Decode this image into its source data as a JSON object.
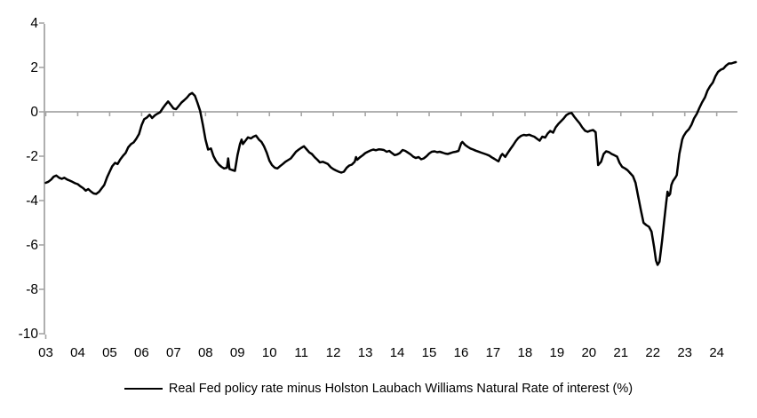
{
  "chart_data": {
    "type": "line",
    "title": "",
    "xlabel": "",
    "ylabel": "",
    "grid": false,
    "zero_line": true,
    "legend_position": "bottom-center",
    "x_axis": {
      "tick_years": [
        2003,
        2004,
        2005,
        2006,
        2007,
        2008,
        2009,
        2010,
        2011,
        2012,
        2013,
        2014,
        2015,
        2016,
        2017,
        2018,
        2019,
        2020,
        2021,
        2022,
        2023,
        2024
      ],
      "tick_labels": [
        "03",
        "04",
        "05",
        "06",
        "07",
        "08",
        "09",
        "10",
        "11",
        "12",
        "13",
        "14",
        "15",
        "16",
        "17",
        "18",
        "19",
        "20",
        "21",
        "22",
        "23",
        "24"
      ],
      "range_years": [
        2002.9,
        2024.72
      ]
    },
    "y_axis": {
      "ticks": [
        4,
        2,
        0,
        -2,
        -4,
        -6,
        -8,
        -10
      ],
      "tick_labels": [
        "4",
        "2",
        "0",
        "-2",
        "-4",
        "-6",
        "-8",
        "-10"
      ],
      "ylim": [
        -10,
        4
      ]
    },
    "series": [
      {
        "name": "Real Fed policy rate minus Holston Laubach Williams Natural Rate of interest (%)",
        "color": "#000000",
        "points": [
          [
            2003.0,
            -3.2
          ],
          [
            2003.08,
            -3.15
          ],
          [
            2003.17,
            -3.05
          ],
          [
            2003.25,
            -2.92
          ],
          [
            2003.33,
            -2.87
          ],
          [
            2003.42,
            -2.97
          ],
          [
            2003.5,
            -3.02
          ],
          [
            2003.58,
            -2.97
          ],
          [
            2003.67,
            -3.05
          ],
          [
            2003.75,
            -3.1
          ],
          [
            2003.83,
            -3.15
          ],
          [
            2003.92,
            -3.22
          ],
          [
            2004.0,
            -3.26
          ],
          [
            2004.08,
            -3.35
          ],
          [
            2004.17,
            -3.44
          ],
          [
            2004.25,
            -3.55
          ],
          [
            2004.33,
            -3.48
          ],
          [
            2004.42,
            -3.6
          ],
          [
            2004.5,
            -3.68
          ],
          [
            2004.58,
            -3.7
          ],
          [
            2004.67,
            -3.6
          ],
          [
            2004.75,
            -3.45
          ],
          [
            2004.83,
            -3.3
          ],
          [
            2004.92,
            -2.95
          ],
          [
            2005.0,
            -2.7
          ],
          [
            2005.08,
            -2.45
          ],
          [
            2005.17,
            -2.3
          ],
          [
            2005.25,
            -2.35
          ],
          [
            2005.33,
            -2.15
          ],
          [
            2005.42,
            -1.98
          ],
          [
            2005.5,
            -1.85
          ],
          [
            2005.58,
            -1.6
          ],
          [
            2005.67,
            -1.45
          ],
          [
            2005.75,
            -1.38
          ],
          [
            2005.83,
            -1.22
          ],
          [
            2005.92,
            -1.0
          ],
          [
            2006.0,
            -0.6
          ],
          [
            2006.08,
            -0.33
          ],
          [
            2006.17,
            -0.25
          ],
          [
            2006.25,
            -0.13
          ],
          [
            2006.33,
            -0.28
          ],
          [
            2006.42,
            -0.15
          ],
          [
            2006.5,
            -0.08
          ],
          [
            2006.58,
            -0.02
          ],
          [
            2006.67,
            0.18
          ],
          [
            2006.75,
            0.33
          ],
          [
            2006.83,
            0.47
          ],
          [
            2006.92,
            0.3
          ],
          [
            2007.0,
            0.15
          ],
          [
            2007.08,
            0.12
          ],
          [
            2007.17,
            0.28
          ],
          [
            2007.25,
            0.42
          ],
          [
            2007.33,
            0.52
          ],
          [
            2007.42,
            0.64
          ],
          [
            2007.5,
            0.78
          ],
          [
            2007.58,
            0.85
          ],
          [
            2007.67,
            0.72
          ],
          [
            2007.75,
            0.4
          ],
          [
            2007.83,
            0.05
          ],
          [
            2007.92,
            -0.6
          ],
          [
            2008.0,
            -1.25
          ],
          [
            2008.08,
            -1.7
          ],
          [
            2008.17,
            -1.65
          ],
          [
            2008.25,
            -2.0
          ],
          [
            2008.33,
            -2.22
          ],
          [
            2008.42,
            -2.38
          ],
          [
            2008.5,
            -2.48
          ],
          [
            2008.58,
            -2.55
          ],
          [
            2008.67,
            -2.52
          ],
          [
            2008.71,
            -2.1
          ],
          [
            2008.75,
            -2.58
          ],
          [
            2008.83,
            -2.62
          ],
          [
            2008.92,
            -2.66
          ],
          [
            2009.0,
            -1.95
          ],
          [
            2009.04,
            -1.7
          ],
          [
            2009.08,
            -1.45
          ],
          [
            2009.13,
            -1.25
          ],
          [
            2009.17,
            -1.45
          ],
          [
            2009.25,
            -1.3
          ],
          [
            2009.33,
            -1.15
          ],
          [
            2009.42,
            -1.2
          ],
          [
            2009.5,
            -1.12
          ],
          [
            2009.58,
            -1.07
          ],
          [
            2009.67,
            -1.25
          ],
          [
            2009.75,
            -1.35
          ],
          [
            2009.83,
            -1.55
          ],
          [
            2009.92,
            -1.85
          ],
          [
            2010.0,
            -2.2
          ],
          [
            2010.08,
            -2.4
          ],
          [
            2010.17,
            -2.52
          ],
          [
            2010.25,
            -2.55
          ],
          [
            2010.33,
            -2.45
          ],
          [
            2010.42,
            -2.35
          ],
          [
            2010.5,
            -2.25
          ],
          [
            2010.58,
            -2.18
          ],
          [
            2010.67,
            -2.1
          ],
          [
            2010.75,
            -1.95
          ],
          [
            2010.83,
            -1.8
          ],
          [
            2010.92,
            -1.7
          ],
          [
            2011.0,
            -1.62
          ],
          [
            2011.08,
            -1.55
          ],
          [
            2011.17,
            -1.7
          ],
          [
            2011.25,
            -1.83
          ],
          [
            2011.33,
            -1.9
          ],
          [
            2011.42,
            -2.05
          ],
          [
            2011.5,
            -2.16
          ],
          [
            2011.58,
            -2.28
          ],
          [
            2011.67,
            -2.25
          ],
          [
            2011.75,
            -2.3
          ],
          [
            2011.83,
            -2.35
          ],
          [
            2011.92,
            -2.5
          ],
          [
            2012.0,
            -2.58
          ],
          [
            2012.08,
            -2.64
          ],
          [
            2012.17,
            -2.7
          ],
          [
            2012.25,
            -2.74
          ],
          [
            2012.33,
            -2.7
          ],
          [
            2012.42,
            -2.52
          ],
          [
            2012.5,
            -2.42
          ],
          [
            2012.58,
            -2.38
          ],
          [
            2012.67,
            -2.25
          ],
          [
            2012.71,
            -2.04
          ],
          [
            2012.75,
            -2.16
          ],
          [
            2012.83,
            -2.05
          ],
          [
            2012.92,
            -1.96
          ],
          [
            2013.0,
            -1.86
          ],
          [
            2013.08,
            -1.8
          ],
          [
            2013.17,
            -1.74
          ],
          [
            2013.25,
            -1.7
          ],
          [
            2013.33,
            -1.73
          ],
          [
            2013.42,
            -1.69
          ],
          [
            2013.5,
            -1.7
          ],
          [
            2013.58,
            -1.72
          ],
          [
            2013.67,
            -1.8
          ],
          [
            2013.75,
            -1.76
          ],
          [
            2013.83,
            -1.85
          ],
          [
            2013.92,
            -1.95
          ],
          [
            2014.0,
            -1.92
          ],
          [
            2014.08,
            -1.86
          ],
          [
            2014.17,
            -1.72
          ],
          [
            2014.25,
            -1.76
          ],
          [
            2014.33,
            -1.83
          ],
          [
            2014.42,
            -1.92
          ],
          [
            2014.5,
            -2.02
          ],
          [
            2014.58,
            -2.08
          ],
          [
            2014.67,
            -2.04
          ],
          [
            2014.75,
            -2.14
          ],
          [
            2014.83,
            -2.1
          ],
          [
            2014.92,
            -2.0
          ],
          [
            2015.0,
            -1.88
          ],
          [
            2015.08,
            -1.8
          ],
          [
            2015.17,
            -1.78
          ],
          [
            2015.25,
            -1.82
          ],
          [
            2015.33,
            -1.8
          ],
          [
            2015.42,
            -1.84
          ],
          [
            2015.5,
            -1.88
          ],
          [
            2015.58,
            -1.9
          ],
          [
            2015.67,
            -1.86
          ],
          [
            2015.75,
            -1.82
          ],
          [
            2015.83,
            -1.8
          ],
          [
            2015.92,
            -1.76
          ],
          [
            2016.0,
            -1.42
          ],
          [
            2016.04,
            -1.36
          ],
          [
            2016.13,
            -1.5
          ],
          [
            2016.21,
            -1.58
          ],
          [
            2016.29,
            -1.65
          ],
          [
            2016.38,
            -1.7
          ],
          [
            2016.46,
            -1.75
          ],
          [
            2016.54,
            -1.79
          ],
          [
            2016.63,
            -1.84
          ],
          [
            2016.71,
            -1.88
          ],
          [
            2016.79,
            -1.92
          ],
          [
            2016.88,
            -1.97
          ],
          [
            2016.96,
            -2.05
          ],
          [
            2017.04,
            -2.12
          ],
          [
            2017.13,
            -2.2
          ],
          [
            2017.17,
            -2.23
          ],
          [
            2017.25,
            -1.97
          ],
          [
            2017.29,
            -1.9
          ],
          [
            2017.38,
            -2.03
          ],
          [
            2017.46,
            -1.85
          ],
          [
            2017.54,
            -1.68
          ],
          [
            2017.63,
            -1.5
          ],
          [
            2017.71,
            -1.32
          ],
          [
            2017.79,
            -1.18
          ],
          [
            2017.88,
            -1.08
          ],
          [
            2017.96,
            -1.04
          ],
          [
            2018.04,
            -1.06
          ],
          [
            2018.13,
            -1.03
          ],
          [
            2018.21,
            -1.08
          ],
          [
            2018.29,
            -1.12
          ],
          [
            2018.38,
            -1.22
          ],
          [
            2018.46,
            -1.3
          ],
          [
            2018.54,
            -1.12
          ],
          [
            2018.63,
            -1.16
          ],
          [
            2018.71,
            -0.98
          ],
          [
            2018.79,
            -0.86
          ],
          [
            2018.88,
            -0.94
          ],
          [
            2018.96,
            -0.7
          ],
          [
            2019.04,
            -0.55
          ],
          [
            2019.13,
            -0.42
          ],
          [
            2019.21,
            -0.3
          ],
          [
            2019.29,
            -0.15
          ],
          [
            2019.38,
            -0.07
          ],
          [
            2019.46,
            -0.05
          ],
          [
            2019.54,
            -0.22
          ],
          [
            2019.63,
            -0.38
          ],
          [
            2019.71,
            -0.52
          ],
          [
            2019.79,
            -0.7
          ],
          [
            2019.88,
            -0.85
          ],
          [
            2019.96,
            -0.9
          ],
          [
            2020.04,
            -0.85
          ],
          [
            2020.13,
            -0.82
          ],
          [
            2020.21,
            -0.92
          ],
          [
            2020.29,
            -2.4
          ],
          [
            2020.38,
            -2.25
          ],
          [
            2020.46,
            -1.9
          ],
          [
            2020.54,
            -1.78
          ],
          [
            2020.63,
            -1.82
          ],
          [
            2020.71,
            -1.9
          ],
          [
            2020.79,
            -1.95
          ],
          [
            2020.88,
            -2.02
          ],
          [
            2020.96,
            -2.3
          ],
          [
            2021.04,
            -2.48
          ],
          [
            2021.13,
            -2.55
          ],
          [
            2021.21,
            -2.63
          ],
          [
            2021.29,
            -2.76
          ],
          [
            2021.38,
            -2.9
          ],
          [
            2021.46,
            -3.2
          ],
          [
            2021.54,
            -3.8
          ],
          [
            2021.63,
            -4.45
          ],
          [
            2021.71,
            -5.0
          ],
          [
            2021.79,
            -5.1
          ],
          [
            2021.88,
            -5.18
          ],
          [
            2021.96,
            -5.4
          ],
          [
            2022.04,
            -6.1
          ],
          [
            2022.1,
            -6.7
          ],
          [
            2022.15,
            -6.9
          ],
          [
            2022.21,
            -6.75
          ],
          [
            2022.29,
            -5.8
          ],
          [
            2022.35,
            -5.0
          ],
          [
            2022.42,
            -4.1
          ],
          [
            2022.46,
            -3.6
          ],
          [
            2022.5,
            -3.78
          ],
          [
            2022.54,
            -3.7
          ],
          [
            2022.58,
            -3.3
          ],
          [
            2022.63,
            -3.12
          ],
          [
            2022.71,
            -2.95
          ],
          [
            2022.75,
            -2.85
          ],
          [
            2022.79,
            -2.4
          ],
          [
            2022.83,
            -1.9
          ],
          [
            2022.88,
            -1.55
          ],
          [
            2022.92,
            -1.25
          ],
          [
            2022.96,
            -1.1
          ],
          [
            2023.04,
            -0.92
          ],
          [
            2023.13,
            -0.78
          ],
          [
            2023.21,
            -0.58
          ],
          [
            2023.29,
            -0.3
          ],
          [
            2023.38,
            -0.08
          ],
          [
            2023.46,
            0.18
          ],
          [
            2023.54,
            0.42
          ],
          [
            2023.63,
            0.65
          ],
          [
            2023.71,
            0.95
          ],
          [
            2023.79,
            1.15
          ],
          [
            2023.88,
            1.32
          ],
          [
            2023.96,
            1.6
          ],
          [
            2024.04,
            1.8
          ],
          [
            2024.13,
            1.9
          ],
          [
            2024.21,
            1.95
          ],
          [
            2024.29,
            2.08
          ],
          [
            2024.38,
            2.18
          ],
          [
            2024.46,
            2.18
          ],
          [
            2024.54,
            2.22
          ],
          [
            2024.6,
            2.24
          ]
        ]
      }
    ]
  },
  "colors": {
    "background": "#ffffff",
    "axis": "#a6a6a6",
    "series_line": "#000000",
    "tick_label": "#000000"
  }
}
